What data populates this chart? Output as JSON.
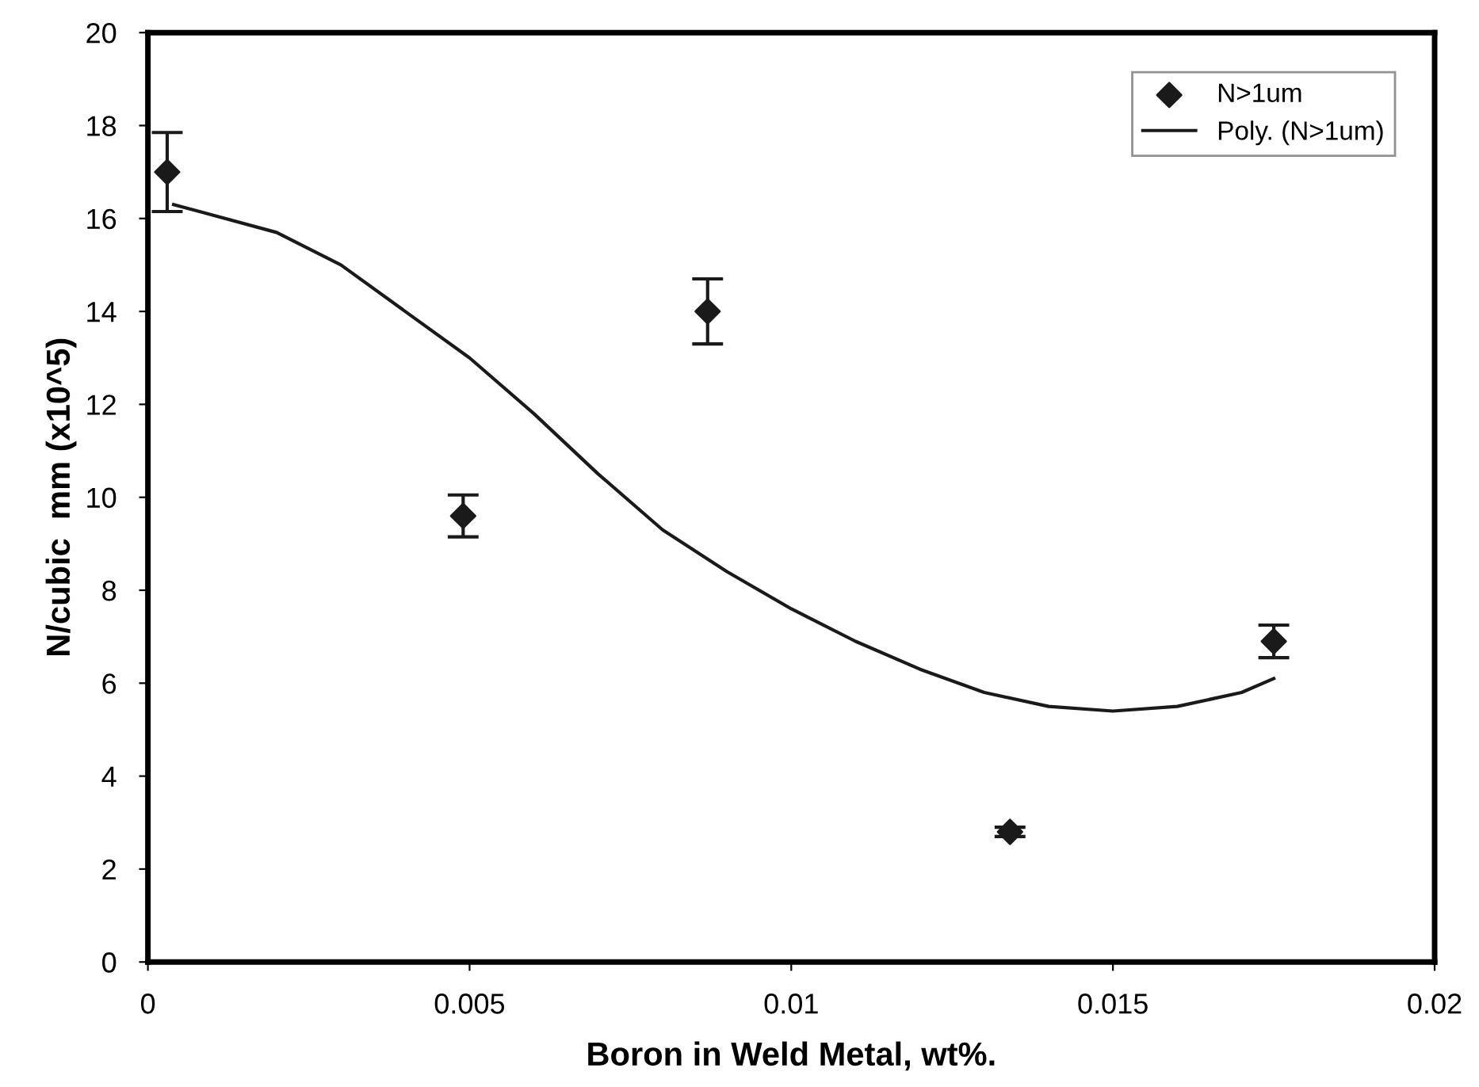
{
  "chart_data": {
    "type": "scatter",
    "xlabel": "Boron in Weld Metal, wt%.",
    "ylabel": "N/cubic  mm (x10^5)",
    "xlim": [
      0,
      0.02
    ],
    "xticks": [
      0,
      0.005,
      0.01,
      0.015,
      0.02
    ],
    "ylim": [
      0,
      20
    ],
    "yticks": [
      0,
      2,
      4,
      6,
      8,
      10,
      12,
      14,
      16,
      18,
      20
    ],
    "grid": false,
    "legend": "top right",
    "series": [
      {
        "name": "N>1um",
        "marker": "diamond",
        "color": "#1a1a1a",
        "x": [
          0.0003,
          0.0049,
          0.0087,
          0.0134,
          0.0175
        ],
        "values": [
          17.0,
          9.6,
          14.0,
          2.8,
          6.9
        ],
        "errors": [
          0.85,
          0.45,
          0.7,
          0.1,
          0.35
        ]
      },
      {
        "name": "Poly. (N>1um)",
        "type": "line",
        "line_style": "solid",
        "marker": "none",
        "color": "#1a1a1a",
        "x": [
          0.0004,
          0.002,
          0.003,
          0.004,
          0.005,
          0.006,
          0.007,
          0.008,
          0.009,
          0.01,
          0.011,
          0.012,
          0.013,
          0.014,
          0.015,
          0.016,
          0.017,
          0.0175
        ],
        "values": [
          16.3,
          15.7,
          15.0,
          14.0,
          13.0,
          11.8,
          10.5,
          9.3,
          8.4,
          7.6,
          6.9,
          6.3,
          5.8,
          5.5,
          5.4,
          5.5,
          5.8,
          6.1
        ]
      }
    ]
  }
}
